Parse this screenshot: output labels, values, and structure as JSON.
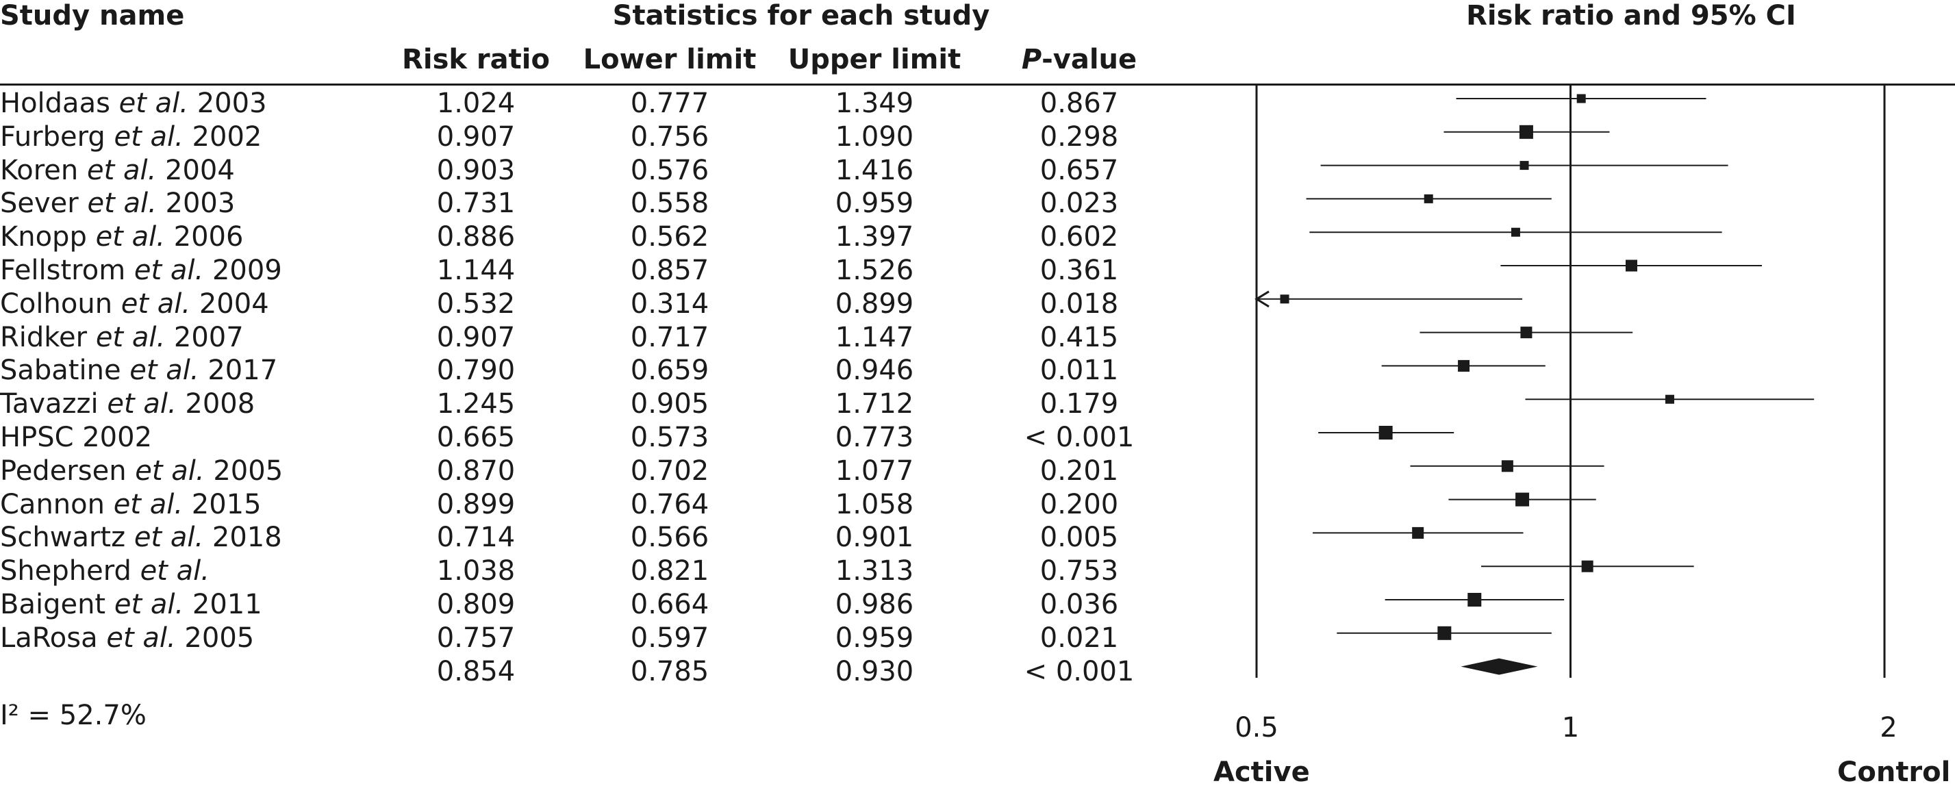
{
  "headers": {
    "study_name": "Study name",
    "stats_group": "Statistics for each study",
    "plot_title": "Risk ratio and 95% CI",
    "risk_ratio": "Risk ratio",
    "lower_limit": "Lower limit",
    "upper_limit": "Upper limit",
    "p_value": "P-value"
  },
  "heterogeneity": "I² = 52.7%",
  "labels": {
    "left": "Active",
    "right": "Control"
  },
  "chart_data": {
    "type": "forest",
    "title": "Risk ratio and 95% CI",
    "xscale": "log",
    "xlim": [
      0.5,
      2
    ],
    "xticks": [
      "0.5",
      "1",
      "2"
    ],
    "reference_line": 1,
    "studies": [
      {
        "name": "Holdaas et al. 2003",
        "rr": "1.024",
        "lower": "0.777",
        "upper": "1.349",
        "p": "0.867",
        "weight": "small"
      },
      {
        "name": "Furberg et al. 2002",
        "rr": "0.907",
        "lower": "0.756",
        "upper": "1.090",
        "p": "0.298",
        "weight": "large"
      },
      {
        "name": "Koren et al. 2004",
        "rr": "0.903",
        "lower": "0.576",
        "upper": "1.416",
        "p": "0.657",
        "weight": "small"
      },
      {
        "name": "Sever et al. 2003",
        "rr": "0.731",
        "lower": "0.558",
        "upper": "0.959",
        "p": "0.023",
        "weight": "small"
      },
      {
        "name": "Knopp et al. 2006",
        "rr": "0.886",
        "lower": "0.562",
        "upper": "1.397",
        "p": "0.602",
        "weight": "small"
      },
      {
        "name": "Fellstrom et al. 2009",
        "rr": "1.144",
        "lower": "0.857",
        "upper": "1.526",
        "p": "0.361",
        "weight": "medium"
      },
      {
        "name": "Colhoun et al. 2004",
        "rr": "0.532",
        "lower": "0.314",
        "upper": "0.899",
        "p": "0.018",
        "weight": "small"
      },
      {
        "name": "Ridker et al. 2007",
        "rr": "0.907",
        "lower": "0.717",
        "upper": "1.147",
        "p": "0.415",
        "weight": "medium"
      },
      {
        "name": "Sabatine et al. 2017",
        "rr": "0.790",
        "lower": "0.659",
        "upper": "0.946",
        "p": "0.011",
        "weight": "medium"
      },
      {
        "name": "Tavazzi et al. 2008",
        "rr": "1.245",
        "lower": "0.905",
        "upper": "1.712",
        "p": "0.179",
        "weight": "small"
      },
      {
        "name": "HPSC 2002",
        "rr": "0.665",
        "lower": "0.573",
        "upper": "0.773",
        "p": "< 0.001",
        "weight": "large"
      },
      {
        "name": "Pedersen et al. 2005",
        "rr": "0.870",
        "lower": "0.702",
        "upper": "1.077",
        "p": "0.201",
        "weight": "medium"
      },
      {
        "name": "Cannon et al. 2015",
        "rr": "0.899",
        "lower": "0.764",
        "upper": "1.058",
        "p": "0.200",
        "weight": "large"
      },
      {
        "name": "Schwartz et al. 2018",
        "rr": "0.714",
        "lower": "0.566",
        "upper": "0.901",
        "p": "0.005",
        "weight": "medium"
      },
      {
        "name": "Shepherd et al.",
        "rr": "1.038",
        "lower": "0.821",
        "upper": "1.313",
        "p": "0.753",
        "weight": "medium"
      },
      {
        "name": "Baigent et al. 2011",
        "rr": "0.809",
        "lower": "0.664",
        "upper": "0.986",
        "p": "0.036",
        "weight": "large"
      },
      {
        "name": "LaRosa et al. 2005",
        "rr": "0.757",
        "lower": "0.597",
        "upper": "0.959",
        "p": "0.021",
        "weight": "large"
      }
    ],
    "summary": {
      "rr": "0.854",
      "lower": "0.785",
      "upper": "0.930",
      "p": "< 0.001"
    }
  }
}
